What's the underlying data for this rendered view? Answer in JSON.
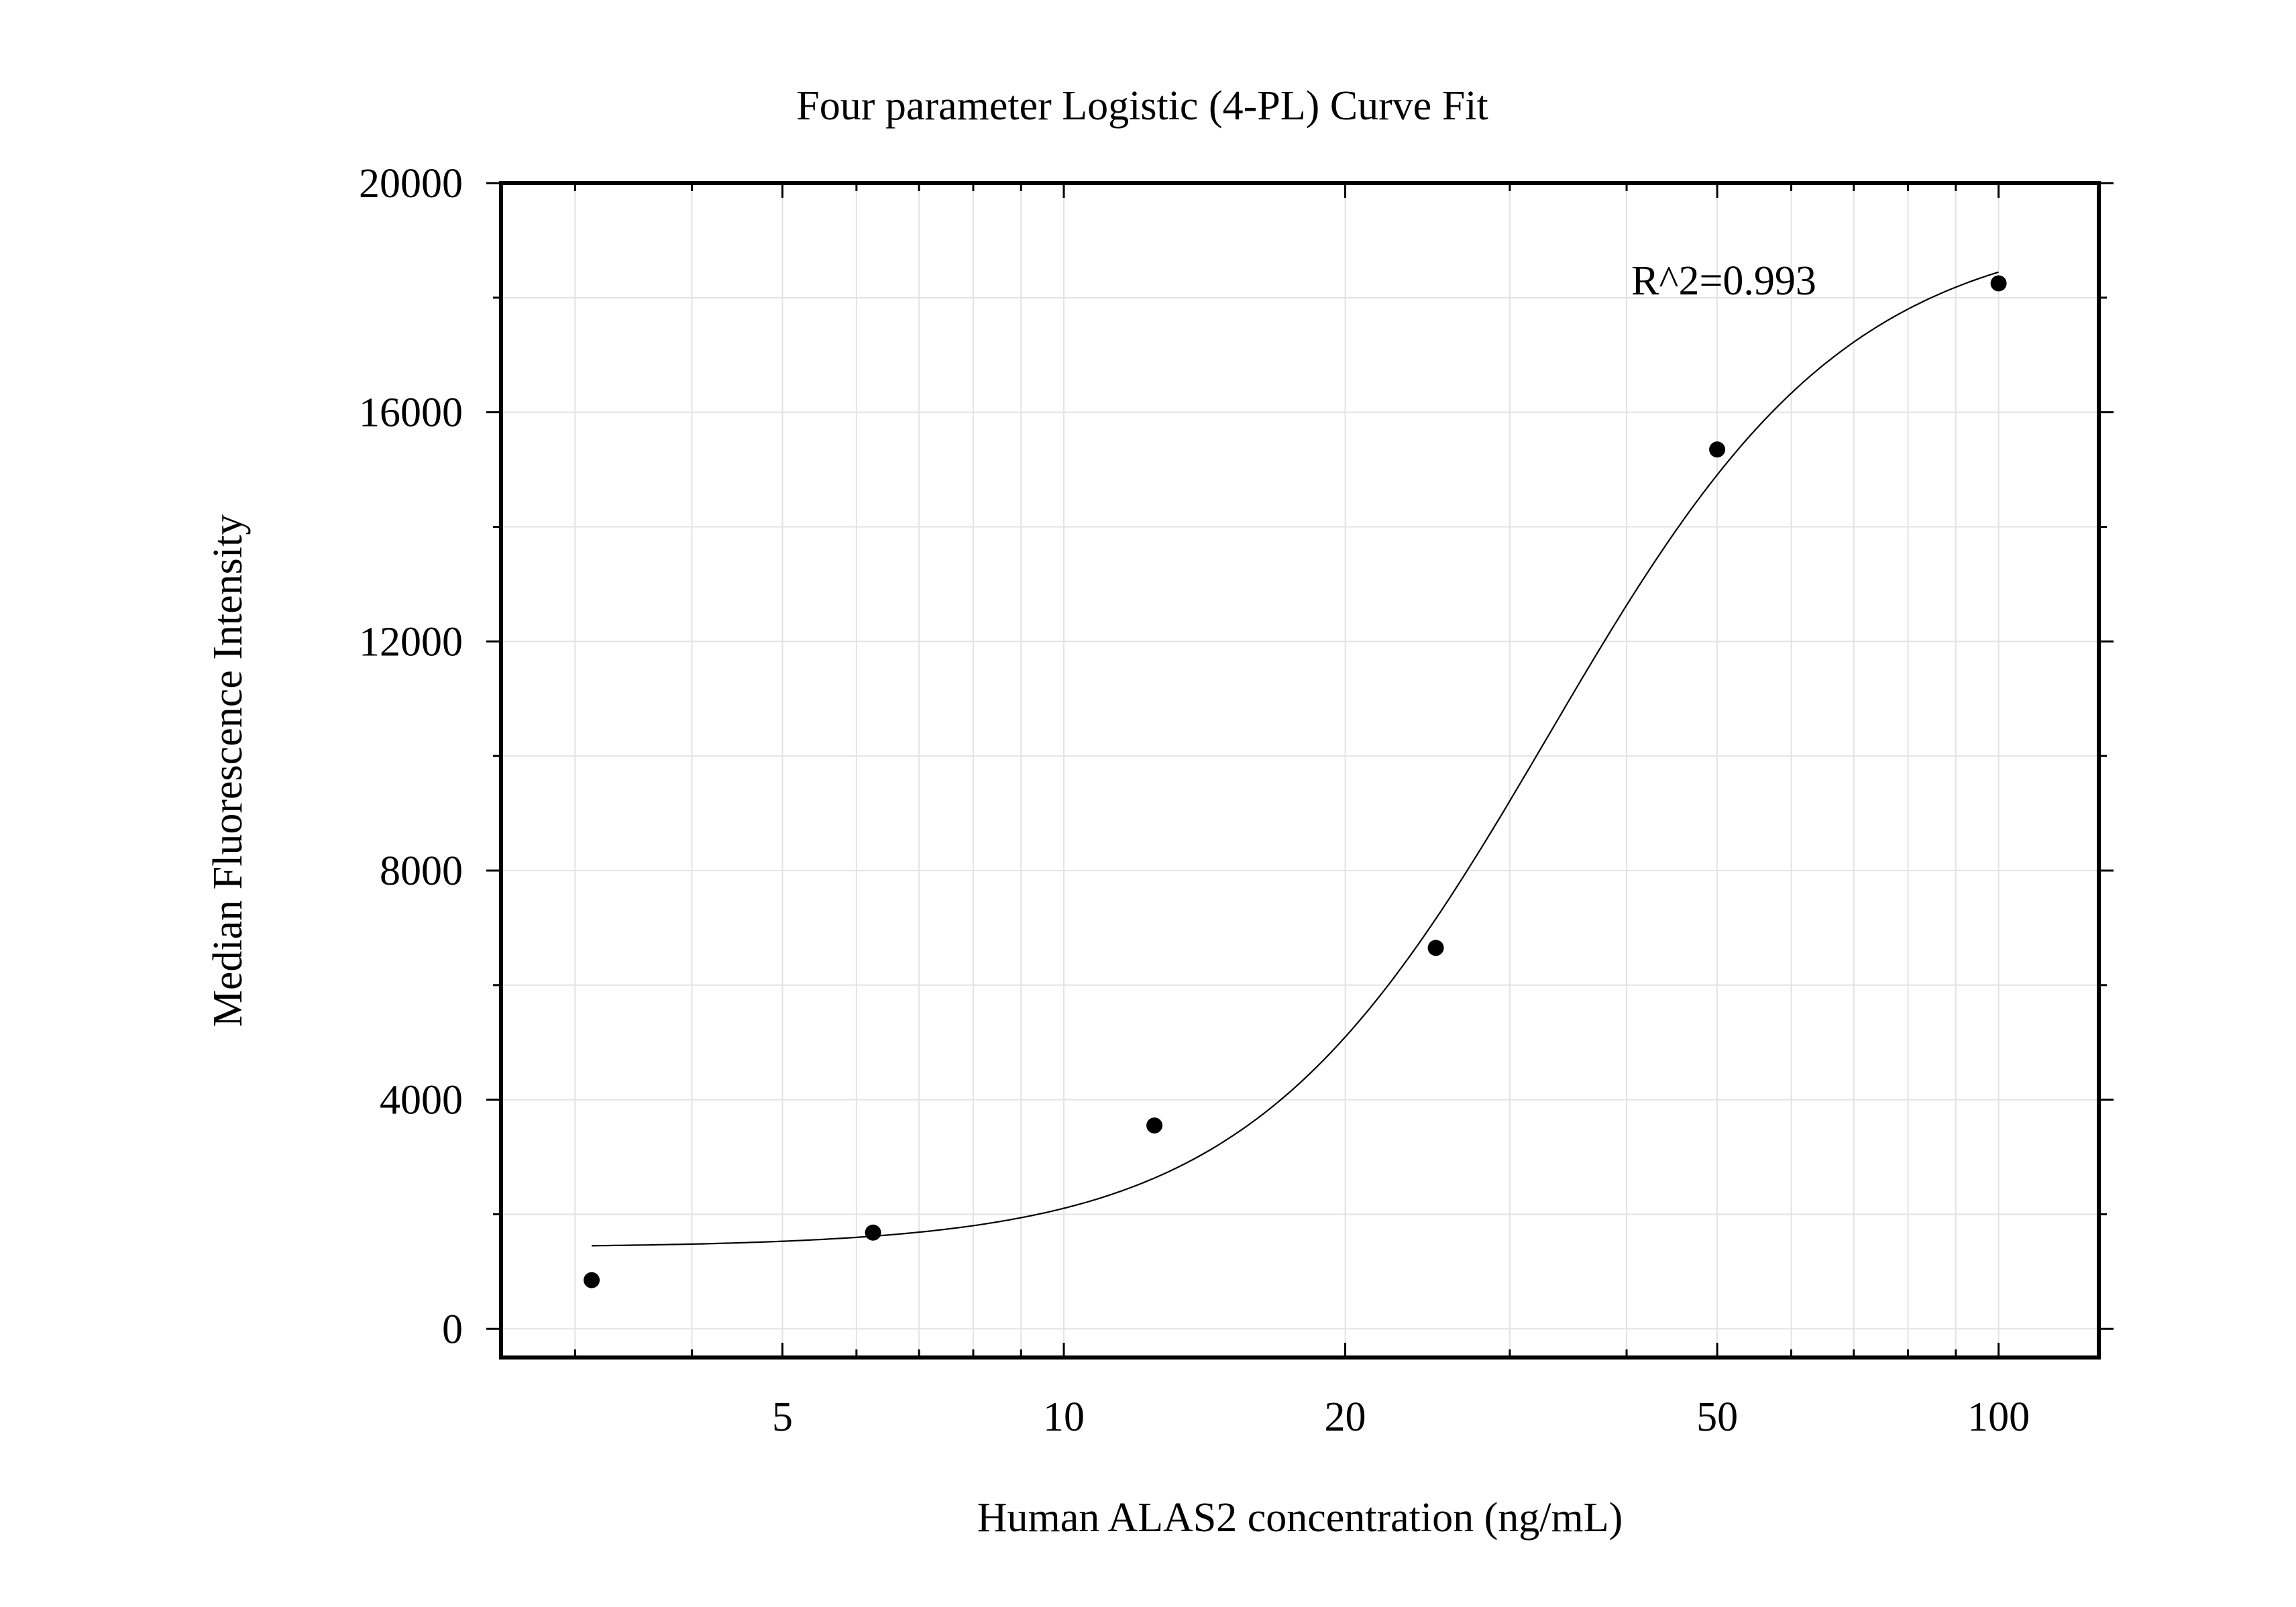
{
  "chart_data": {
    "type": "scatter",
    "title": "Four parameter Logistic (4-PL) Curve Fit",
    "xlabel": "Human ALAS2 concentration (ng/mL)",
    "ylabel": "Median Fluorescence Intensity",
    "x_scale": "log",
    "xlim": [
      2.5,
      128
    ],
    "ylim": [
      -500,
      20000
    ],
    "x_ticks": [
      5,
      10,
      20,
      50,
      100
    ],
    "x_tick_labels": [
      "5",
      "10",
      "20",
      "50",
      "100"
    ],
    "y_ticks": [
      0,
      4000,
      8000,
      12000,
      16000,
      20000
    ],
    "y_tick_labels": [
      "0",
      "4000",
      "8000",
      "12000",
      "16000",
      "20000"
    ],
    "grid": true,
    "annotation": "R^2=0.993",
    "series": [
      {
        "kind": "points",
        "x": [
          3.125,
          6.25,
          12.5,
          25,
          50,
          100
        ],
        "y": [
          850,
          1680,
          3550,
          6650,
          15350,
          18250
        ]
      },
      {
        "kind": "fit-curve",
        "model": "4PL",
        "params": {
          "A": 1420,
          "D": 19300,
          "C": 33,
          "B": 2.7
        },
        "x_range": [
          3.125,
          100
        ]
      }
    ],
    "colors": {
      "points": "#000000",
      "curve": "#000000",
      "grid": "#e3e3e3",
      "axes": "#000000"
    }
  }
}
